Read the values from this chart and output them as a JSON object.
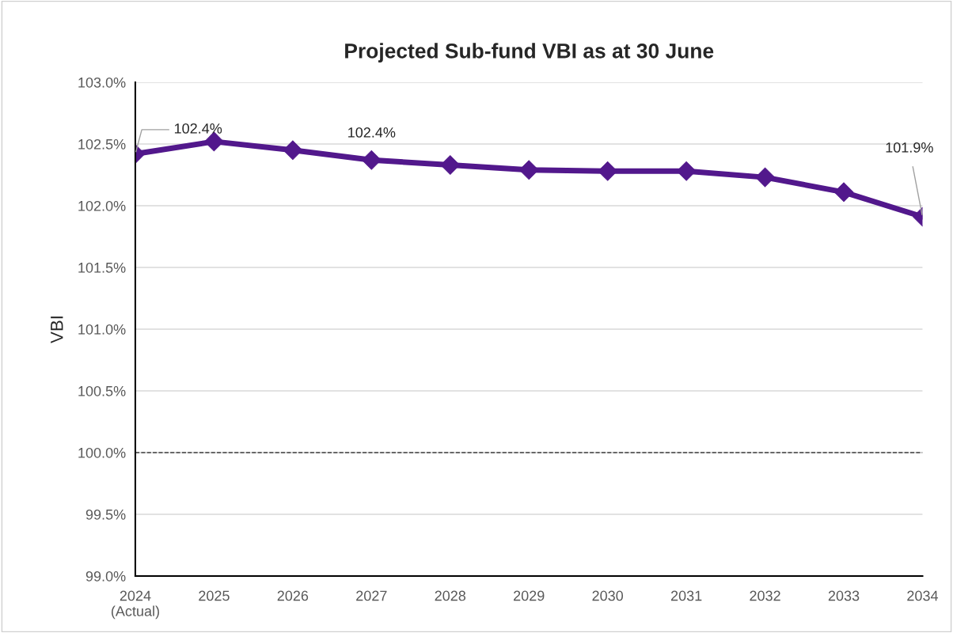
{
  "chart_data": {
    "type": "line",
    "title": "Projected Sub-fund VBI as at 30 June",
    "ylabel": "VBI",
    "categories": [
      "2024\n(Actual)",
      "2025",
      "2026",
      "2027",
      "2028",
      "2029",
      "2030",
      "2031",
      "2032",
      "2033",
      "2034"
    ],
    "series": [
      {
        "color": "#52188c",
        "values": [
          102.42,
          102.52,
          102.45,
          102.37,
          102.33,
          102.29,
          102.28,
          102.28,
          102.23,
          102.11,
          101.91
        ],
        "value_labels": [
          "102.4%",
          null,
          null,
          "102.4%",
          null,
          null,
          null,
          null,
          null,
          null,
          "101.9%"
        ]
      }
    ],
    "ylim": [
      99.0,
      103.0
    ],
    "yticks": [
      {
        "value": 99.0,
        "label": "99.0%"
      },
      {
        "value": 99.5,
        "label": "99.5%"
      },
      {
        "value": 100.0,
        "label": "100.0%"
      },
      {
        "value": 100.5,
        "label": "100.5%"
      },
      {
        "value": 101.0,
        "label": "101.0%"
      },
      {
        "value": 101.5,
        "label": "101.5%"
      },
      {
        "value": 102.0,
        "label": "102.0%"
      },
      {
        "value": 102.5,
        "label": "102.5%"
      },
      {
        "value": 103.0,
        "label": "103.0%"
      }
    ],
    "ref_lines": [
      {
        "axis": "y",
        "value": 100.0,
        "color": "#404040",
        "line_style": "dashed"
      }
    ],
    "grid": "y",
    "marker": "diamond",
    "line_style": "solid",
    "legend": false
  }
}
